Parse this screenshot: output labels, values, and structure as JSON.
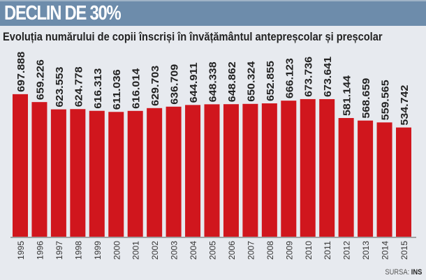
{
  "header": {
    "title": "DECLIN DE 30%"
  },
  "chart_data": {
    "type": "bar",
    "title": "Evoluția numărului de copii înscriși în învățământul antepreșcolar și preșcolar",
    "categories": [
      "1995",
      "1996",
      "1997",
      "1998",
      "1999",
      "2000",
      "2001",
      "2002",
      "2003",
      "2004",
      "2005",
      "2006",
      "2007",
      "2008",
      "2009",
      "2010",
      "2011",
      "2012",
      "2013",
      "2014",
      "2015"
    ],
    "values": [
      697.888,
      659.226,
      623.553,
      624.778,
      616.313,
      611.036,
      616.014,
      629.703,
      636.709,
      644.911,
      648.338,
      648.862,
      650.324,
      652.855,
      666.123,
      673.736,
      673.641,
      581.144,
      568.659,
      559.565,
      534.742
    ],
    "labels": [
      "697.888",
      "659.226",
      "623.553",
      "624.778",
      "616.313",
      "611.036",
      "616.014",
      "629.703",
      "636.709",
      "644.911",
      "648.338",
      "648.862",
      "650.324",
      "652.855",
      "666.123",
      "673.736",
      "673.641",
      "581.144",
      "568.659",
      "559.565",
      "534.742"
    ],
    "bar_color": "#d0161d",
    "grid": false,
    "source_label": "SURSA:",
    "source": "INS"
  }
}
